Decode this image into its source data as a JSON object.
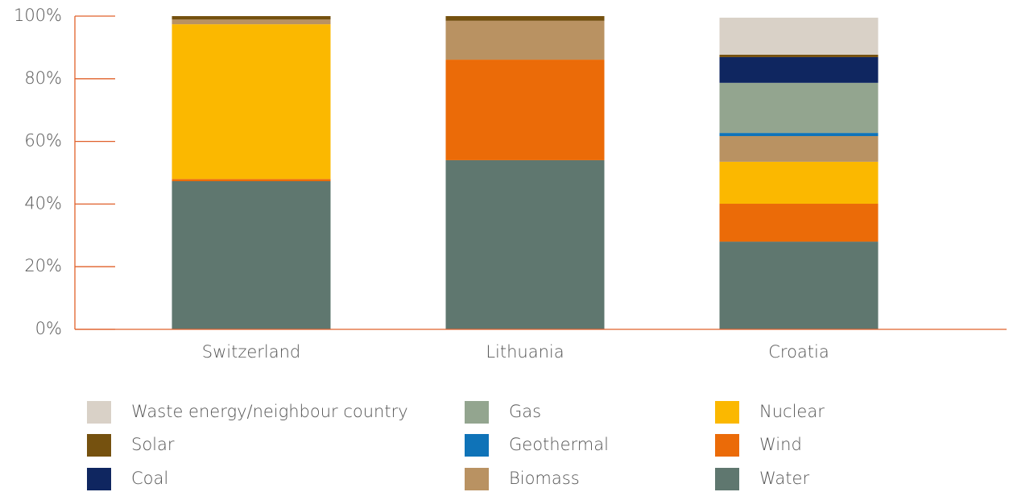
{
  "chart_data": {
    "type": "stacked_bar",
    "categories": [
      "Switzerland",
      "Lithuania",
      "Croatia"
    ],
    "series": [
      {
        "name": "Waste energy/neighbour country",
        "color": "#d9d1c7",
        "values": [
          0,
          0,
          11.8
        ]
      },
      {
        "name": "Solar",
        "color": "#75510f",
        "values": [
          1.1,
          1.5,
          0.8
        ]
      },
      {
        "name": "Coal",
        "color": "#0f2660",
        "values": [
          0,
          0,
          8.2
        ]
      },
      {
        "name": "Gas",
        "color": "#93a58f",
        "values": [
          0,
          0,
          16.0
        ]
      },
      {
        "name": "Geothermal",
        "color": "#0f73b8",
        "values": [
          0,
          0,
          1.0
        ]
      },
      {
        "name": "Biomass",
        "color": "#b99262",
        "values": [
          1.5,
          12.4,
          8.2
        ]
      },
      {
        "name": "Nuclear",
        "color": "#fbb800",
        "values": [
          49.4,
          0,
          13.4
        ]
      },
      {
        "name": "Wind",
        "color": "#eb6b08",
        "values": [
          0.7,
          32.1,
          12.1
        ]
      },
      {
        "name": "Water",
        "color": "#5f776f",
        "values": [
          47.3,
          54.0,
          28.0
        ]
      }
    ],
    "ylim": [
      0,
      100
    ],
    "yticks": [
      {
        "value": 0,
        "label": "0%"
      },
      {
        "value": 20,
        "label": "20%"
      },
      {
        "value": 40,
        "label": "40%"
      },
      {
        "value": 60,
        "label": "60%"
      },
      {
        "value": 80,
        "label": "80%"
      },
      {
        "value": 100,
        "label": "100%"
      }
    ],
    "axis_color": "#e0602a"
  }
}
